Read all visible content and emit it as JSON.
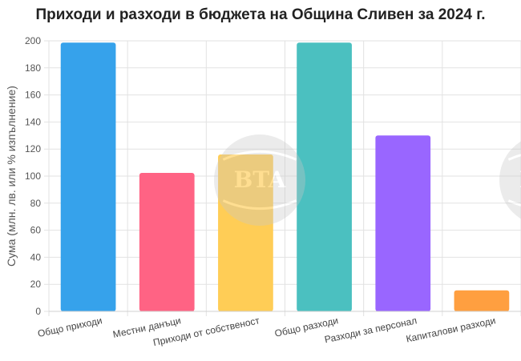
{
  "chart_data": {
    "type": "bar",
    "title": "Приходи и разходи в бюджета на Община Сливен за 2024 г.",
    "xlabel": "",
    "ylabel": "Сума (млн. лв. или % изпълнение)",
    "ylim": [
      0,
      200
    ],
    "yticks": [
      0,
      20,
      40,
      60,
      80,
      100,
      120,
      140,
      160,
      180,
      200
    ],
    "grid": true,
    "legend": "none",
    "categories": [
      "Общо приходи",
      "Местни данъци",
      "Приходи от собственост",
      "Общо разходи",
      "Разходи за персонал",
      "Капиталови разходи"
    ],
    "values": [
      198.7,
      102.4,
      116,
      198.7,
      130,
      15.5
    ],
    "colors": [
      "#36a2eb",
      "#ff6384",
      "#ffcd56",
      "#4bc0c0",
      "#9966ff",
      "#ff9f40"
    ]
  },
  "watermark": "BTA"
}
